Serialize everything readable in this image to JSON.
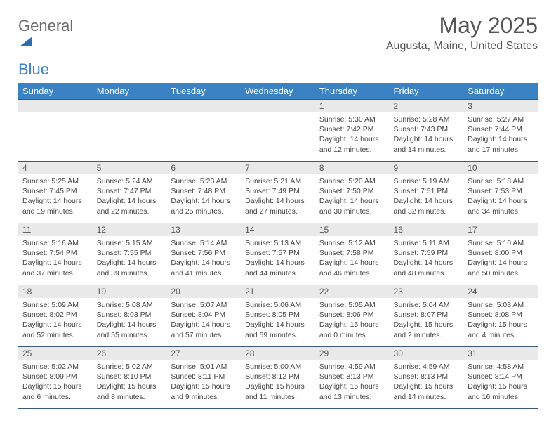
{
  "brand": {
    "part1": "General",
    "part2": "Blue",
    "shape_color": "#2a6db0"
  },
  "header": {
    "month_title": "May 2025",
    "location": "Augusta, Maine, United States"
  },
  "colors": {
    "header_bg": "#3b82c4",
    "header_fg": "#ffffff",
    "daynum_bg": "#e9e9e9",
    "border": "#3b5a7a",
    "text": "#444444"
  },
  "day_headers": [
    "Sunday",
    "Monday",
    "Tuesday",
    "Wednesday",
    "Thursday",
    "Friday",
    "Saturday"
  ],
  "weeks": [
    [
      {
        "empty": true
      },
      {
        "empty": true
      },
      {
        "empty": true
      },
      {
        "empty": true
      },
      {
        "n": "1",
        "sr": "5:30 AM",
        "ss": "7:42 PM",
        "dl": "14 hours and 12 minutes."
      },
      {
        "n": "2",
        "sr": "5:28 AM",
        "ss": "7:43 PM",
        "dl": "14 hours and 14 minutes."
      },
      {
        "n": "3",
        "sr": "5:27 AM",
        "ss": "7:44 PM",
        "dl": "14 hours and 17 minutes."
      }
    ],
    [
      {
        "n": "4",
        "sr": "5:25 AM",
        "ss": "7:45 PM",
        "dl": "14 hours and 19 minutes."
      },
      {
        "n": "5",
        "sr": "5:24 AM",
        "ss": "7:47 PM",
        "dl": "14 hours and 22 minutes."
      },
      {
        "n": "6",
        "sr": "5:23 AM",
        "ss": "7:48 PM",
        "dl": "14 hours and 25 minutes."
      },
      {
        "n": "7",
        "sr": "5:21 AM",
        "ss": "7:49 PM",
        "dl": "14 hours and 27 minutes."
      },
      {
        "n": "8",
        "sr": "5:20 AM",
        "ss": "7:50 PM",
        "dl": "14 hours and 30 minutes."
      },
      {
        "n": "9",
        "sr": "5:19 AM",
        "ss": "7:51 PM",
        "dl": "14 hours and 32 minutes."
      },
      {
        "n": "10",
        "sr": "5:18 AM",
        "ss": "7:53 PM",
        "dl": "14 hours and 34 minutes."
      }
    ],
    [
      {
        "n": "11",
        "sr": "5:16 AM",
        "ss": "7:54 PM",
        "dl": "14 hours and 37 minutes."
      },
      {
        "n": "12",
        "sr": "5:15 AM",
        "ss": "7:55 PM",
        "dl": "14 hours and 39 minutes."
      },
      {
        "n": "13",
        "sr": "5:14 AM",
        "ss": "7:56 PM",
        "dl": "14 hours and 41 minutes."
      },
      {
        "n": "14",
        "sr": "5:13 AM",
        "ss": "7:57 PM",
        "dl": "14 hours and 44 minutes."
      },
      {
        "n": "15",
        "sr": "5:12 AM",
        "ss": "7:58 PM",
        "dl": "14 hours and 46 minutes."
      },
      {
        "n": "16",
        "sr": "5:11 AM",
        "ss": "7:59 PM",
        "dl": "14 hours and 48 minutes."
      },
      {
        "n": "17",
        "sr": "5:10 AM",
        "ss": "8:00 PM",
        "dl": "14 hours and 50 minutes."
      }
    ],
    [
      {
        "n": "18",
        "sr": "5:09 AM",
        "ss": "8:02 PM",
        "dl": "14 hours and 52 minutes."
      },
      {
        "n": "19",
        "sr": "5:08 AM",
        "ss": "8:03 PM",
        "dl": "14 hours and 55 minutes."
      },
      {
        "n": "20",
        "sr": "5:07 AM",
        "ss": "8:04 PM",
        "dl": "14 hours and 57 minutes."
      },
      {
        "n": "21",
        "sr": "5:06 AM",
        "ss": "8:05 PM",
        "dl": "14 hours and 59 minutes."
      },
      {
        "n": "22",
        "sr": "5:05 AM",
        "ss": "8:06 PM",
        "dl": "15 hours and 0 minutes."
      },
      {
        "n": "23",
        "sr": "5:04 AM",
        "ss": "8:07 PM",
        "dl": "15 hours and 2 minutes."
      },
      {
        "n": "24",
        "sr": "5:03 AM",
        "ss": "8:08 PM",
        "dl": "15 hours and 4 minutes."
      }
    ],
    [
      {
        "n": "25",
        "sr": "5:02 AM",
        "ss": "8:09 PM",
        "dl": "15 hours and 6 minutes."
      },
      {
        "n": "26",
        "sr": "5:02 AM",
        "ss": "8:10 PM",
        "dl": "15 hours and 8 minutes."
      },
      {
        "n": "27",
        "sr": "5:01 AM",
        "ss": "8:11 PM",
        "dl": "15 hours and 9 minutes."
      },
      {
        "n": "28",
        "sr": "5:00 AM",
        "ss": "8:12 PM",
        "dl": "15 hours and 11 minutes."
      },
      {
        "n": "29",
        "sr": "4:59 AM",
        "ss": "8:13 PM",
        "dl": "15 hours and 13 minutes."
      },
      {
        "n": "30",
        "sr": "4:59 AM",
        "ss": "8:13 PM",
        "dl": "15 hours and 14 minutes."
      },
      {
        "n": "31",
        "sr": "4:58 AM",
        "ss": "8:14 PM",
        "dl": "15 hours and 16 minutes."
      }
    ]
  ],
  "labels": {
    "sunrise": "Sunrise:",
    "sunset": "Sunset:",
    "daylight": "Daylight:"
  }
}
